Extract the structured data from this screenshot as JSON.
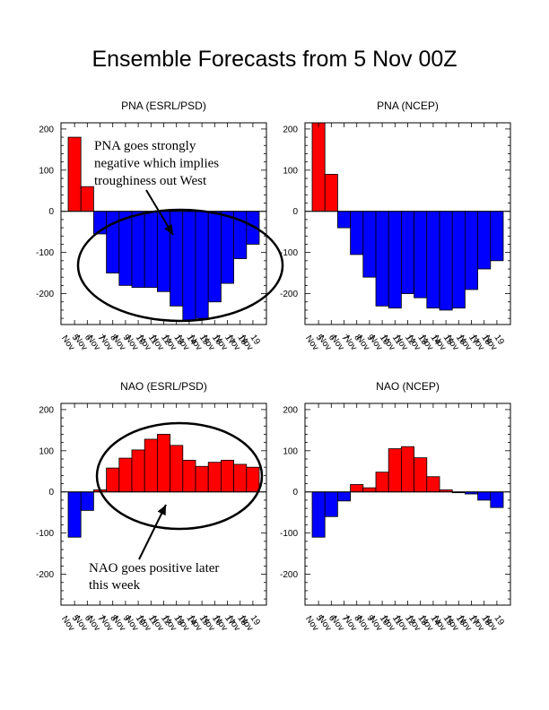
{
  "title": "Ensemble Forecasts from 5 Nov 00Z",
  "colors": {
    "positive": "#ff0000",
    "negative": "#0000ff",
    "outline": "#000000"
  },
  "chart_data": [
    {
      "type": "bar",
      "title": "PNA (ESRL/PSD)",
      "categories": [
        "5 Nov",
        "6 Nov",
        "7 Nov",
        "8 Nov",
        "9 Nov",
        "10 Nov",
        "11 Nov",
        "12 Nov",
        "13 Nov",
        "14 Nov",
        "15 Nov",
        "16 Nov",
        "17 Nov",
        "18 Nov",
        "19 Nov"
      ],
      "values": [
        180,
        60,
        -55,
        -150,
        -180,
        -185,
        -185,
        -195,
        -230,
        -265,
        -260,
        -220,
        -175,
        -115,
        -80
      ],
      "ylim": [
        -275,
        215
      ],
      "yticks": [
        -200,
        -100,
        0,
        100,
        200
      ],
      "annotation": {
        "lines": [
          "PNA goes strongly",
          "negative which implies",
          "troughiness out West"
        ]
      }
    },
    {
      "type": "bar",
      "title": "PNA (NCEP)",
      "categories": [
        "5 Nov",
        "6 Nov",
        "7 Nov",
        "8 Nov",
        "9 Nov",
        "10 Nov",
        "11 Nov",
        "12 Nov",
        "13 Nov",
        "14 Nov",
        "15 Nov",
        "16 Nov",
        "17 Nov",
        "18 Nov",
        "19 Nov"
      ],
      "values": [
        215,
        90,
        -40,
        -105,
        -160,
        -230,
        -235,
        -200,
        -210,
        -235,
        -240,
        -235,
        -190,
        -140,
        -120
      ],
      "ylim": [
        -275,
        215
      ],
      "yticks": [
        -200,
        -100,
        0,
        100,
        200
      ]
    },
    {
      "type": "bar",
      "title": "NAO (ESRL/PSD)",
      "categories": [
        "5 Nov",
        "6 Nov",
        "7 Nov",
        "8 Nov",
        "9 Nov",
        "10 Nov",
        "11 Nov",
        "12 Nov",
        "13 Nov",
        "14 Nov",
        "15 Nov",
        "16 Nov",
        "17 Nov",
        "18 Nov",
        "19 Nov"
      ],
      "values": [
        -110,
        -45,
        5,
        58,
        82,
        102,
        128,
        140,
        113,
        77,
        62,
        72,
        77,
        67,
        60
      ],
      "ylim": [
        -275,
        215
      ],
      "yticks": [
        -200,
        -100,
        0,
        100,
        200
      ],
      "annotation": {
        "lines": [
          "NAO goes positive later",
          "this week"
        ]
      }
    },
    {
      "type": "bar",
      "title": "NAO (NCEP)",
      "categories": [
        "5 Nov",
        "6 Nov",
        "7 Nov",
        "8 Nov",
        "9 Nov",
        "10 Nov",
        "11 Nov",
        "12 Nov",
        "13 Nov",
        "14 Nov",
        "15 Nov",
        "16 Nov",
        "17 Nov",
        "18 Nov",
        "19 Nov"
      ],
      "values": [
        -110,
        -60,
        -22,
        18,
        10,
        48,
        105,
        110,
        83,
        37,
        5,
        -2,
        -5,
        -20,
        -38
      ],
      "ylim": [
        -275,
        215
      ],
      "yticks": [
        -200,
        -100,
        0,
        100,
        200
      ]
    }
  ]
}
